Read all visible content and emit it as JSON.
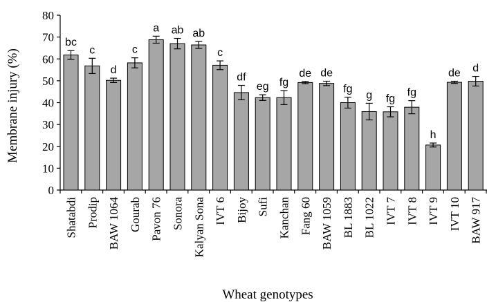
{
  "chart_data": {
    "type": "bar",
    "xlabel": "Wheat genotypes",
    "ylabel": "Membrane injury (%)",
    "ylim": [
      0,
      80
    ],
    "yticks": [
      0,
      10,
      20,
      30,
      40,
      50,
      60,
      70,
      80
    ],
    "grid": false,
    "bar_color": "#a6a6a6",
    "categories": [
      "Shatabdi",
      "Prodip",
      "BAW 1064",
      "Gourab",
      "Pavon 76",
      "Sonora",
      "Kalyan Sona",
      "IVT 6",
      "Bijoy",
      "Sufi",
      "Kanchan",
      "Fang 60",
      "BAW 1059",
      "BL 1883",
      "BL 1022",
      "IVT 7",
      "IVT 8",
      "IVT 9",
      "IVT 10",
      "BAW 917"
    ],
    "values": [
      61.8,
      56.8,
      50.2,
      58.2,
      68.8,
      67.0,
      66.4,
      57.1,
      44.6,
      42.3,
      42.3,
      49.2,
      48.8,
      40.0,
      35.9,
      35.8,
      37.9,
      20.6,
      49.3,
      49.8
    ],
    "errors": [
      2.0,
      3.5,
      1.0,
      2.3,
      1.6,
      2.4,
      1.6,
      2.0,
      3.3,
      1.3,
      3.2,
      0.5,
      1.0,
      2.5,
      3.8,
      2.3,
      3.0,
      0.9,
      0.5,
      2.2
    ],
    "significance_letters": [
      "bc",
      "c",
      "d",
      "c",
      "a",
      "ab",
      "ab",
      "c",
      "df",
      "eg",
      "fg",
      "de",
      "de",
      "fg",
      "g",
      "fg",
      "fg",
      "h",
      "de",
      "d"
    ]
  }
}
